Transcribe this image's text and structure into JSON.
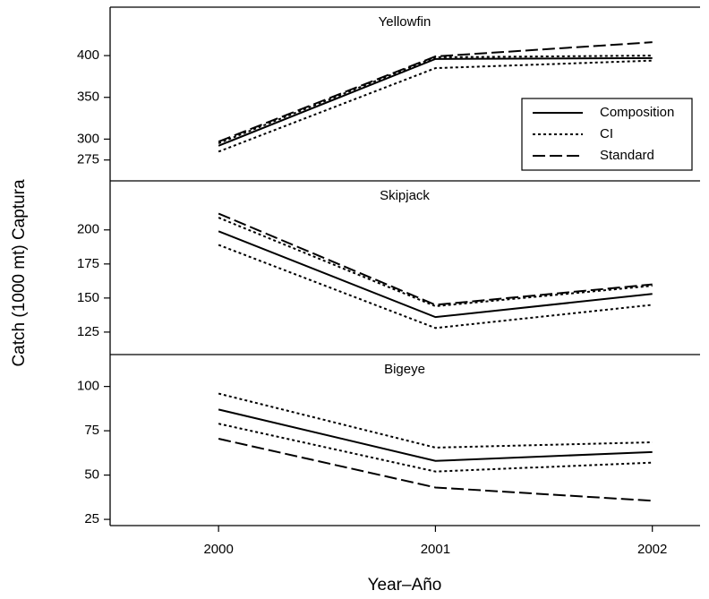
{
  "chart_data": {
    "type": "line",
    "xlabel": "Year–Año",
    "ylabel": "Catch (1000 mt) Captura",
    "x": [
      2000,
      2001,
      2002
    ],
    "xlim": [
      1999.5,
      2002.22
    ],
    "xticks": [
      2000,
      2001,
      2002
    ],
    "panels": [
      {
        "title": "Yellowfin",
        "ylim": [
          250,
          458
        ],
        "yticks": [
          275,
          300,
          350,
          400
        ],
        "legend": "right",
        "series": [
          {
            "name": "Composition",
            "color": "#000000",
            "linestyle": "solid",
            "values": [
              292,
              396,
              397
            ]
          },
          {
            "name": "CI",
            "color": "#000000",
            "linestyle": "dotted",
            "lower": [
              285,
              385,
              394
            ],
            "upper": [
              295,
              398,
              400
            ]
          },
          {
            "name": "Standard",
            "color": "#000000",
            "linestyle": "dashed",
            "values": [
              297,
              399,
              416
            ]
          }
        ]
      },
      {
        "title": "Skipjack",
        "ylim": [
          108.5,
          236
        ],
        "yticks": [
          125,
          150,
          175,
          200
        ],
        "series": [
          {
            "name": "Composition",
            "color": "#000000",
            "linestyle": "solid",
            "values": [
              199,
              136,
              153
            ]
          },
          {
            "name": "CI",
            "color": "#000000",
            "linestyle": "dotted",
            "lower": [
              189,
              128,
              145
            ],
            "upper": [
              209,
              144,
              159
            ]
          },
          {
            "name": "Standard",
            "color": "#000000",
            "linestyle": "dashed",
            "values": [
              212,
              145,
              160
            ]
          }
        ]
      },
      {
        "title": "Bigeye",
        "ylim": [
          21.5,
          118
        ],
        "yticks": [
          25,
          50,
          75,
          100
        ],
        "series": [
          {
            "name": "Composition",
            "color": "#000000",
            "linestyle": "solid",
            "values": [
              87,
              58,
              63
            ]
          },
          {
            "name": "CI",
            "color": "#000000",
            "linestyle": "dotted",
            "lower": [
              79,
              52,
              57
            ],
            "upper": [
              96,
              65.5,
              68.5
            ]
          },
          {
            "name": "Standard",
            "color": "#000000",
            "linestyle": "dashed",
            "values": [
              70.5,
              43,
              35.5
            ]
          }
        ]
      }
    ]
  }
}
